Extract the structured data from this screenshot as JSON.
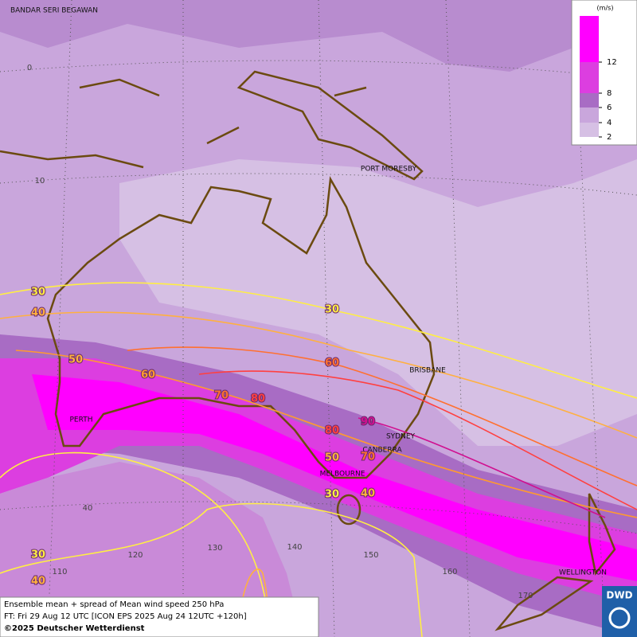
{
  "cities": [
    "BANDAR SERI BEGAWAN",
    "PORT MORESBY",
    "BRISBANE",
    "PERTH",
    "SYDNEY",
    "CANBERRA",
    "MELBOURNE",
    "WELLINGTON"
  ],
  "grid_labels": [
    "0",
    "10",
    "40",
    "110",
    "120",
    "130",
    "140",
    "150",
    "160",
    "170"
  ],
  "contour_labels": [
    30,
    40,
    50,
    60,
    70,
    80,
    30,
    60,
    90,
    80,
    50,
    70,
    30,
    40,
    30,
    40
  ],
  "legend": {
    "unit": "(m/s)",
    "ticks": [
      12,
      8,
      6,
      4,
      2
    ]
  },
  "footer": [
    "Ensemble mean + spread of Mean wind speed 250 hPa",
    "FT: Fri 29 Aug 12 UTC [ICON EPS 2025 Aug 24 12UTC +120h]",
    "©2025 Deutscher Wetterdienst"
  ],
  "logo": "DWD"
}
